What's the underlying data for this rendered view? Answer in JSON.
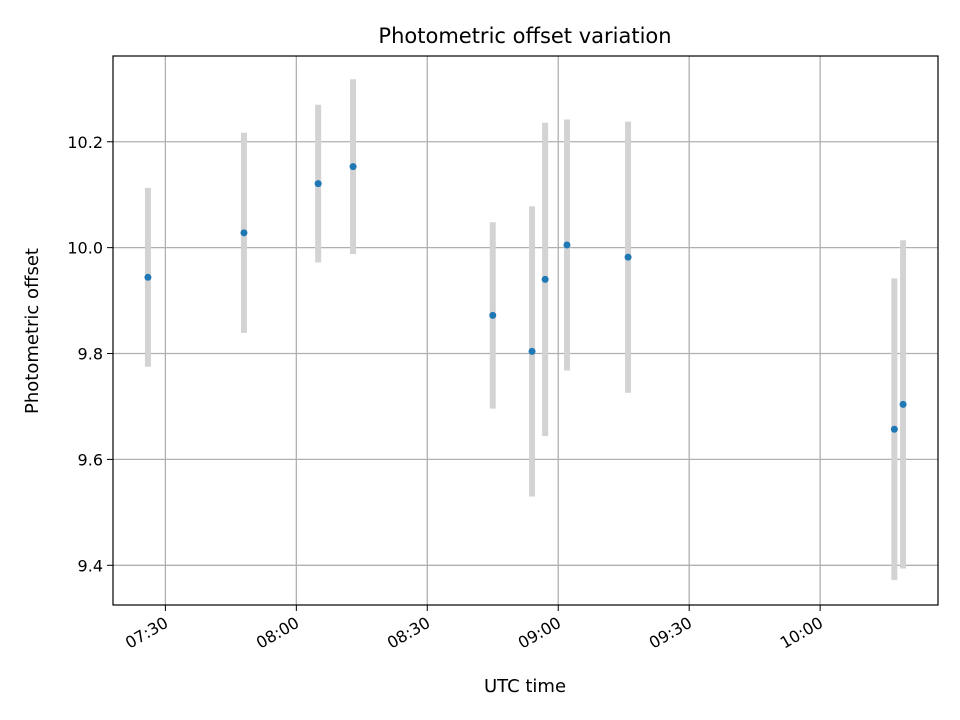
{
  "chart_data": {
    "type": "scatter",
    "title": "Photometric offset variation",
    "xlabel": "UTC time",
    "ylabel": "Photometric offset",
    "x_tick_labels": [
      "07:30",
      "08:00",
      "08:30",
      "09:00",
      "09:30",
      "10:00"
    ],
    "x_tick_minutes": [
      450,
      480,
      510,
      540,
      570,
      600
    ],
    "xlim_minutes": [
      438,
      627
    ],
    "y_ticks": [
      9.4,
      9.6,
      9.8,
      10.0,
      10.2
    ],
    "y_tick_labels": [
      "9.4",
      "9.6",
      "9.8",
      "10.0",
      "10.2"
    ],
    "ylim": [
      9.325,
      10.362
    ],
    "grid": true,
    "marker_color": "#1f77b4",
    "errorbar_color": "#d3d3d3",
    "points": [
      {
        "time": "07:26",
        "y": 9.944,
        "yerr": 0.169
      },
      {
        "time": "07:48",
        "y": 10.028,
        "yerr": 0.189
      },
      {
        "time": "08:05",
        "y": 10.121,
        "yerr": 0.149
      },
      {
        "time": "08:13",
        "y": 10.153,
        "yerr": 0.165
      },
      {
        "time": "08:45",
        "y": 9.872,
        "yerr": 0.176
      },
      {
        "time": "08:54",
        "y": 9.804,
        "yerr": 0.274
      },
      {
        "time": "08:57",
        "y": 9.94,
        "yerr": 0.296
      },
      {
        "time": "09:02",
        "y": 10.005,
        "yerr": 0.237
      },
      {
        "time": "09:16",
        "y": 9.982,
        "yerr": 0.256
      },
      {
        "time": "10:17",
        "y": 9.657,
        "yerr": 0.285
      },
      {
        "time": "10:19",
        "y": 9.704,
        "yerr": 0.31
      }
    ]
  }
}
